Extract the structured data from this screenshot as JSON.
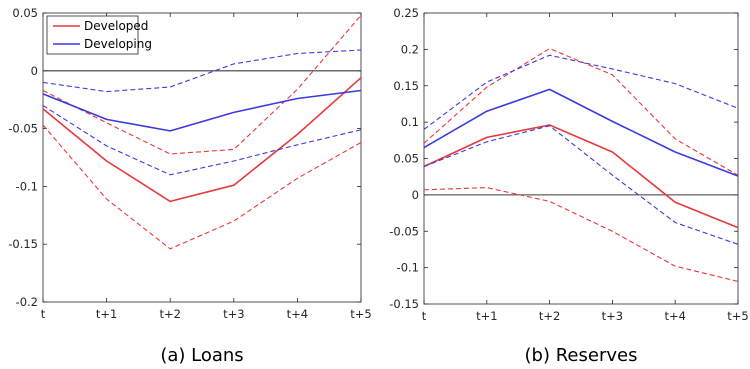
{
  "chart_data": [
    {
      "type": "line",
      "caption": "(a)  Loans",
      "categories": [
        "t",
        "t+1",
        "t+2",
        "t+3",
        "t+4",
        "t+5"
      ],
      "ylim": [
        -0.2,
        0.05
      ],
      "yticks": [
        "-0.2",
        "-0.15",
        "-0.1",
        "-0.05",
        "0",
        "0.05"
      ],
      "yticks_values": [
        -0.2,
        -0.15,
        -0.1,
        -0.05,
        0,
        0.05
      ],
      "grid": false,
      "zero_line": true,
      "legend": {
        "placement": "top-left",
        "entries": [
          {
            "label": "Developed",
            "color": "#e8383b"
          },
          {
            "label": "Developing",
            "color": "#3b3bde"
          }
        ]
      },
      "series": [
        {
          "name": "Developed",
          "style": "solid",
          "color": "#e8383b",
          "values": [
            -0.033,
            -0.078,
            -0.113,
            -0.099,
            -0.055,
            -0.006
          ]
        },
        {
          "style": "dashed",
          "color": "#e8383b",
          "values": [
            -0.017,
            -0.045,
            -0.072,
            -0.068,
            -0.016,
            0.048
          ]
        },
        {
          "style": "dashed",
          "color": "#e8383b",
          "values": [
            -0.047,
            -0.111,
            -0.154,
            -0.13,
            -0.093,
            -0.062
          ]
        },
        {
          "name": "Developing",
          "style": "solid",
          "color": "#3b3bde",
          "values": [
            -0.02,
            -0.042,
            -0.052,
            -0.036,
            -0.024,
            -0.017
          ]
        },
        {
          "style": "dashed",
          "color": "#3b3bde",
          "values": [
            -0.01,
            -0.018,
            -0.014,
            0.006,
            0.015,
            0.018
          ]
        },
        {
          "style": "dashed",
          "color": "#3b3bde",
          "values": [
            -0.03,
            -0.065,
            -0.09,
            -0.078,
            -0.064,
            -0.051
          ]
        }
      ]
    },
    {
      "type": "line",
      "caption": "(b)  Reserves",
      "categories": [
        "t",
        "t+1",
        "t+2",
        "t+3",
        "t+4",
        "t+5"
      ],
      "ylim": [
        -0.15,
        0.25
      ],
      "yticks": [
        "-0.15",
        "-0.1",
        "-0.05",
        "0",
        "0.05",
        "0.1",
        "0.15",
        "0.2",
        "0.25"
      ],
      "yticks_values": [
        -0.15,
        -0.1,
        -0.05,
        0,
        0.05,
        0.1,
        0.15,
        0.2,
        0.25
      ],
      "grid": false,
      "zero_line": true,
      "series": [
        {
          "name": "Developed",
          "style": "solid",
          "color": "#e8383b",
          "values": [
            0.039,
            0.079,
            0.096,
            0.059,
            -0.01,
            -0.045
          ]
        },
        {
          "style": "dashed",
          "color": "#e8383b",
          "values": [
            0.071,
            0.148,
            0.201,
            0.165,
            0.077,
            0.027
          ]
        },
        {
          "style": "dashed",
          "color": "#e8383b",
          "values": [
            0.007,
            0.01,
            -0.009,
            -0.05,
            -0.098,
            -0.119
          ]
        },
        {
          "name": "Developing",
          "style": "solid",
          "color": "#3b3bde",
          "values": [
            0.065,
            0.115,
            0.145,
            0.101,
            0.059,
            0.026
          ]
        },
        {
          "style": "dashed",
          "color": "#3b3bde",
          "values": [
            0.09,
            0.155,
            0.192,
            0.173,
            0.153,
            0.119
          ]
        },
        {
          "style": "dashed",
          "color": "#3b3bde",
          "values": [
            0.039,
            0.073,
            0.095,
            0.027,
            -0.038,
            -0.068
          ]
        }
      ]
    }
  ]
}
